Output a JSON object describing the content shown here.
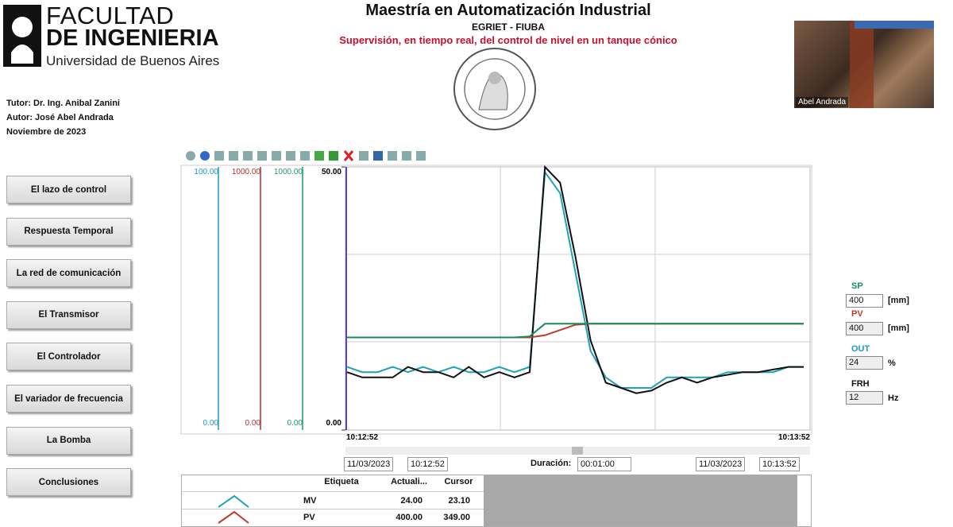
{
  "header": {
    "logo_line1": "FACULTAD",
    "logo_line2": "DE INGENIERIA",
    "logo_line3": "Universidad de Buenos Aires",
    "title": "Maestría en Automatización Industrial",
    "subtitle": "EGRIET - FIUBA",
    "description": "Supervisión, en tiempo real, del control de nivel en un tanque cónico",
    "webcam_name": "Abel Andrada"
  },
  "credits": [
    "Tutor: Dr. Ing. Anibal Zanini",
    "Autor: José Abel Andrada",
    "Noviembre de 2023"
  ],
  "menu": [
    "El lazo de control",
    "Respuesta Temporal",
    "La red de comunicación",
    "El Transmisor",
    "El Controlador",
    "El variador de frecuencia",
    "La Bomba",
    "Conclusiones"
  ],
  "chart_data": {
    "type": "line",
    "ylim": [
      0,
      50
    ],
    "yticks": [
      {
        "value": 0,
        "label": "0.00"
      },
      {
        "value": 50,
        "label": "50.00"
      }
    ],
    "xlabels": [
      "10:12:52",
      "10:13:52"
    ],
    "extra_axes": [
      {
        "color": "#1a9bc9",
        "top": "100.00",
        "bottom": "0.00"
      },
      {
        "color": "#b03030",
        "top": "1000.00",
        "bottom": "0.00"
      },
      {
        "color": "#1a9a6a",
        "top": "1000.00",
        "bottom": "0.00"
      }
    ],
    "series": [
      {
        "color": "#1fa2b8",
        "values": [
          12,
          11,
          11,
          12,
          11,
          12,
          11,
          12,
          11,
          11,
          12,
          11,
          12,
          49,
          45,
          30,
          15,
          10,
          8,
          8,
          8,
          10,
          10,
          10,
          10,
          11,
          11,
          11,
          11,
          12,
          12
        ]
      },
      {
        "color": "#111111",
        "values": [
          11,
          10,
          10,
          10,
          12,
          11,
          11,
          10,
          12,
          10,
          11,
          10,
          11,
          50,
          47,
          33,
          17,
          9,
          8,
          7,
          7.5,
          9,
          10,
          9,
          10,
          10.5,
          11,
          11,
          11.5,
          12,
          12
        ]
      },
      {
        "color": "#c0392b",
        "values": [
          17.6,
          17.6,
          17.6,
          17.6,
          17.6,
          17.6,
          17.6,
          17.6,
          17.6,
          17.6,
          17.6,
          17.6,
          17.6,
          18,
          19,
          20,
          20.2,
          20.2,
          20.2,
          20.2,
          20.2,
          20.2,
          20.2,
          20.2,
          20.2,
          20.2,
          20.2,
          20.2,
          20.2,
          20.2,
          20.2
        ]
      },
      {
        "color": "#168a5a",
        "values": [
          17.6,
          17.6,
          17.6,
          17.6,
          17.6,
          17.6,
          17.6,
          17.6,
          17.6,
          17.6,
          17.6,
          17.6,
          17.8,
          20.2,
          20.2,
          20.2,
          20.2,
          20.2,
          20.2,
          20.2,
          20.2,
          20.2,
          20.2,
          20.2,
          20.2,
          20.2,
          20.2,
          20.2,
          20.2,
          20.2,
          20.2
        ]
      }
    ]
  },
  "time_controls": {
    "start_date": "11/03/2023",
    "start_time": "10:12:52",
    "duration_label": "Duración:",
    "duration": "00:01:00",
    "end_date": "11/03/2023",
    "end_time": "10:13:52"
  },
  "table": {
    "headers": [
      "Etiqueta",
      "Actuali...",
      "Cursor"
    ],
    "rows": [
      [
        "MV",
        "24.00",
        "23.10"
      ],
      [
        "PV",
        "400.00",
        "349.00"
      ]
    ]
  },
  "panel": [
    {
      "label": "SP",
      "value": "400",
      "unit": "[mm]"
    },
    {
      "label": "PV",
      "value": "400",
      "unit": "[mm]"
    },
    {
      "label": "OUT",
      "value": "24",
      "unit": "%"
    },
    {
      "label": "FRH",
      "value": "12",
      "unit": "Hz"
    }
  ]
}
